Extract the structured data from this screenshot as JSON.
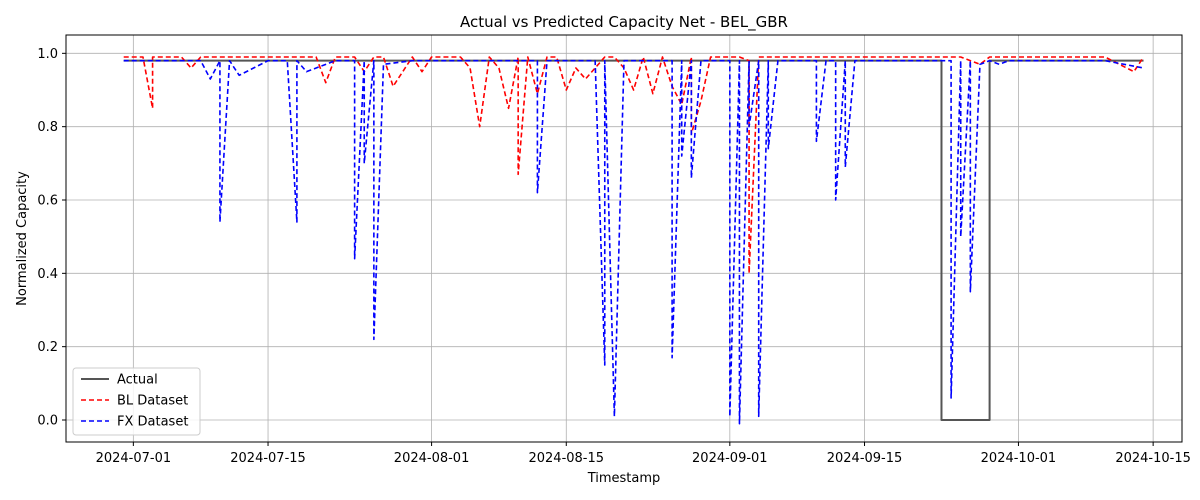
{
  "chart_data": {
    "type": "line",
    "title": "Actual vs Predicted Capacity Net - BEL_GBR",
    "xlabel": "Timestamp",
    "ylabel": "Normalized Capacity",
    "xlim": [
      "2024-06-24",
      "2024-10-18"
    ],
    "ylim": [
      -0.06,
      1.05
    ],
    "grid": true,
    "legend_position": "lower-left",
    "x_ticks": [
      "2024-07-01",
      "2024-07-15",
      "2024-08-01",
      "2024-08-15",
      "2024-09-01",
      "2024-09-15",
      "2024-10-01",
      "2024-10-15"
    ],
    "y_ticks": [
      0.0,
      0.2,
      0.4,
      0.6,
      0.8,
      1.0
    ],
    "y_tick_labels": [
      "0.0",
      "0.2",
      "0.4",
      "0.6",
      "0.8",
      "1.0"
    ],
    "series": [
      {
        "name": "Actual",
        "color": "#555555",
        "style": "solid",
        "x": [
          "2024-06-30",
          "2024-09-23",
          "2024-09-23",
          "2024-09-28",
          "2024-09-28",
          "2024-10-14"
        ],
        "y": [
          0.98,
          0.98,
          0.0,
          0.0,
          0.98,
          0.98
        ]
      },
      {
        "name": "BL Dataset",
        "color": "#ff0000",
        "style": "dashed",
        "x": [
          "2024-06-30",
          "2024-07-02",
          "2024-07-03",
          "2024-07-03",
          "2024-07-06",
          "2024-07-07",
          "2024-07-08",
          "2024-07-14",
          "2024-07-17",
          "2024-07-20",
          "2024-07-21",
          "2024-07-22",
          "2024-07-24",
          "2024-07-25",
          "2024-07-26",
          "2024-07-27",
          "2024-07-28",
          "2024-07-30",
          "2024-07-31",
          "2024-08-01",
          "2024-08-04",
          "2024-08-05",
          "2024-08-06",
          "2024-08-07",
          "2024-08-08",
          "2024-08-09",
          "2024-08-10",
          "2024-08-10",
          "2024-08-11",
          "2024-08-12",
          "2024-08-13",
          "2024-08-14",
          "2024-08-15",
          "2024-08-16",
          "2024-08-17",
          "2024-08-19",
          "2024-08-20",
          "2024-08-21",
          "2024-08-22",
          "2024-08-23",
          "2024-08-24",
          "2024-08-25",
          "2024-08-26",
          "2024-08-27",
          "2024-08-28",
          "2024-08-28",
          "2024-08-29",
          "2024-08-30",
          "2024-08-31",
          "2024-09-01",
          "2024-09-02",
          "2024-09-03",
          "2024-09-03",
          "2024-09-04",
          "2024-09-05",
          "2024-09-10",
          "2024-09-15",
          "2024-09-20",
          "2024-09-25",
          "2024-09-27",
          "2024-09-28",
          "2024-10-01",
          "2024-10-05",
          "2024-10-10",
          "2024-10-13",
          "2024-10-14"
        ],
        "y": [
          0.99,
          0.99,
          0.85,
          0.99,
          0.99,
          0.96,
          0.99,
          0.99,
          0.99,
          0.99,
          0.92,
          0.99,
          0.99,
          0.95,
          0.99,
          0.99,
          0.91,
          0.99,
          0.95,
          0.99,
          0.99,
          0.96,
          0.8,
          0.99,
          0.96,
          0.85,
          0.99,
          0.67,
          0.99,
          0.89,
          0.99,
          0.99,
          0.9,
          0.96,
          0.93,
          0.99,
          0.99,
          0.96,
          0.9,
          0.99,
          0.89,
          0.99,
          0.91,
          0.86,
          0.99,
          0.78,
          0.87,
          0.99,
          0.99,
          0.99,
          0.99,
          0.98,
          0.4,
          0.99,
          0.99,
          0.99,
          0.99,
          0.99,
          0.99,
          0.97,
          0.99,
          0.99,
          0.99,
          0.99,
          0.95,
          0.99
        ]
      },
      {
        "name": "FX Dataset",
        "color": "#0000ff",
        "style": "dashed",
        "x": [
          "2024-06-30",
          "2024-07-02",
          "2024-07-05",
          "2024-07-08",
          "2024-07-09",
          "2024-07-10",
          "2024-07-10",
          "2024-07-11",
          "2024-07-12",
          "2024-07-15",
          "2024-07-17",
          "2024-07-18",
          "2024-07-18",
          "2024-07-19",
          "2024-07-22",
          "2024-07-24",
          "2024-07-24",
          "2024-07-25",
          "2024-07-25",
          "2024-07-26",
          "2024-07-26",
          "2024-07-27",
          "2024-07-30",
          "2024-08-03",
          "2024-08-08",
          "2024-08-10",
          "2024-08-11",
          "2024-08-12",
          "2024-08-12",
          "2024-08-13",
          "2024-08-14",
          "2024-08-16",
          "2024-08-18",
          "2024-08-19",
          "2024-08-19",
          "2024-08-20",
          "2024-08-21",
          "2024-08-24",
          "2024-08-26",
          "2024-08-26",
          "2024-08-27",
          "2024-08-27",
          "2024-08-28",
          "2024-08-28",
          "2024-08-29",
          "2024-08-31",
          "2024-09-01",
          "2024-09-01",
          "2024-09-02",
          "2024-09-02",
          "2024-09-03",
          "2024-09-03",
          "2024-09-04",
          "2024-09-04",
          "2024-09-05",
          "2024-09-05",
          "2024-09-06",
          "2024-09-10",
          "2024-09-10",
          "2024-09-11",
          "2024-09-12",
          "2024-09-12",
          "2024-09-13",
          "2024-09-13",
          "2024-09-14",
          "2024-09-16",
          "2024-09-20",
          "2024-09-23",
          "2024-09-24",
          "2024-09-24",
          "2024-09-25",
          "2024-09-25",
          "2024-09-26",
          "2024-09-26",
          "2024-09-27",
          "2024-09-28",
          "2024-09-29",
          "2024-09-30",
          "2024-10-01",
          "2024-10-05",
          "2024-10-10",
          "2024-10-14"
        ],
        "y": [
          0.98,
          0.98,
          0.98,
          0.98,
          0.93,
          0.98,
          0.54,
          0.98,
          0.94,
          0.98,
          0.98,
          0.54,
          0.98,
          0.95,
          0.98,
          0.98,
          0.44,
          0.98,
          0.7,
          0.98,
          0.22,
          0.97,
          0.98,
          0.98,
          0.98,
          0.98,
          0.98,
          0.98,
          0.62,
          0.98,
          0.98,
          0.98,
          0.98,
          0.15,
          0.98,
          0.01,
          0.98,
          0.98,
          0.98,
          0.17,
          0.98,
          0.72,
          0.98,
          0.66,
          0.98,
          0.98,
          0.98,
          0.01,
          0.98,
          -0.01,
          0.98,
          0.8,
          0.98,
          0.01,
          0.98,
          0.74,
          0.98,
          0.98,
          0.76,
          0.98,
          0.98,
          0.6,
          0.98,
          0.69,
          0.98,
          0.98,
          0.98,
          0.98,
          0.98,
          0.06,
          0.98,
          0.5,
          0.98,
          0.35,
          0.97,
          0.98,
          0.97,
          0.98,
          0.98,
          0.98,
          0.98,
          0.96
        ]
      }
    ]
  }
}
